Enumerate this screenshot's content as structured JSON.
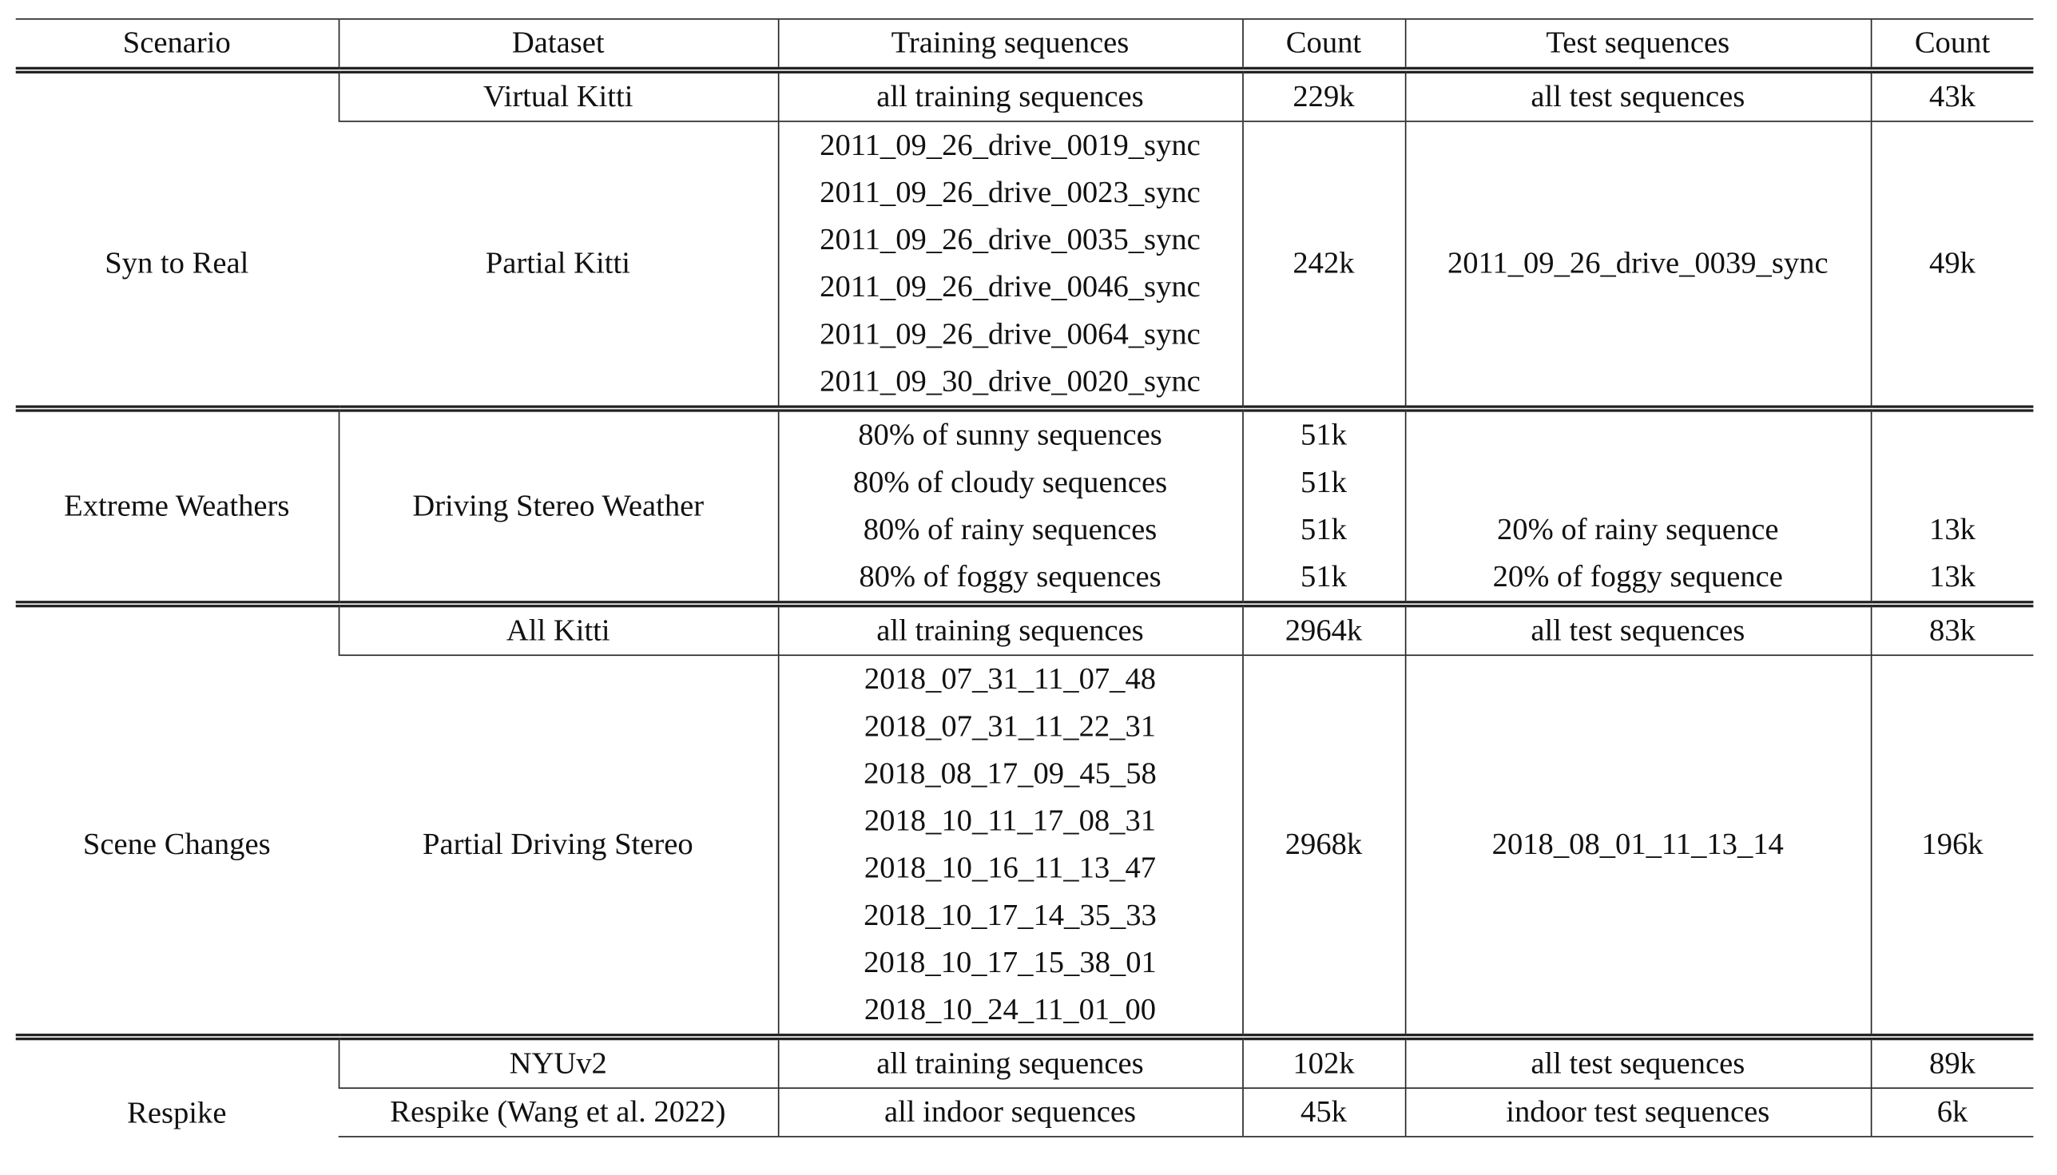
{
  "headers": [
    "Scenario",
    "Dataset",
    "Training sequences",
    "Count",
    "Test sequences",
    "Count"
  ],
  "groups": [
    {
      "scenario": "Syn to Real",
      "rows": [
        {
          "dataset": "Virtual Kitti",
          "train": [
            "all training sequences"
          ],
          "train_count": [
            "229k"
          ],
          "test": [
            "all test sequences"
          ],
          "test_count": [
            "43k"
          ]
        },
        {
          "dataset": "Partial Kitti",
          "train": [
            "2011_09_26_drive_0019_sync",
            "2011_09_26_drive_0023_sync",
            "2011_09_26_drive_0035_sync",
            "2011_09_26_drive_0046_sync",
            "2011_09_26_drive_0064_sync",
            "2011_09_30_drive_0020_sync"
          ],
          "train_count": [
            "242k"
          ],
          "test": [
            "2011_09_26_drive_0039_sync"
          ],
          "test_count": [
            "49k"
          ]
        }
      ]
    },
    {
      "scenario": "Extreme Weathers",
      "rows": [
        {
          "dataset": "Driving Stereo Weather",
          "train": [
            "80% of sunny sequences",
            "80% of cloudy sequences",
            "80% of rainy sequences",
            "80% of foggy sequences"
          ],
          "train_count": [
            "51k",
            "51k",
            "51k",
            "51k"
          ],
          "test": [
            "",
            "",
            "20% of rainy sequence",
            "20% of foggy sequence"
          ],
          "test_count": [
            "",
            "",
            "13k",
            "13k"
          ]
        }
      ]
    },
    {
      "scenario": "Scene Changes",
      "rows": [
        {
          "dataset": "All Kitti",
          "train": [
            "all training sequences"
          ],
          "train_count": [
            "2964k"
          ],
          "test": [
            "all test sequences"
          ],
          "test_count": [
            "83k"
          ]
        },
        {
          "dataset": "Partial Driving Stereo",
          "train": [
            "2018_07_31_11_07_48",
            "2018_07_31_11_22_31",
            "2018_08_17_09_45_58",
            "2018_10_11_17_08_31",
            "2018_10_16_11_13_47",
            "2018_10_17_14_35_33",
            "2018_10_17_15_38_01",
            "2018_10_24_11_01_00"
          ],
          "train_count": [
            "2968k"
          ],
          "test": [
            "2018_08_01_11_13_14"
          ],
          "test_count": [
            "196k"
          ]
        }
      ]
    },
    {
      "scenario": "Respike",
      "rows": [
        {
          "dataset": "NYUv2",
          "train": [
            "all training sequences"
          ],
          "train_count": [
            "102k"
          ],
          "test": [
            "all test sequences"
          ],
          "test_count": [
            "89k"
          ]
        },
        {
          "dataset": "Respike (Wang et al. 2022)",
          "train": [
            "all indoor sequences"
          ],
          "train_count": [
            "45k"
          ],
          "test": [
            "indoor test sequences"
          ],
          "test_count": [
            "6k"
          ]
        }
      ]
    }
  ]
}
